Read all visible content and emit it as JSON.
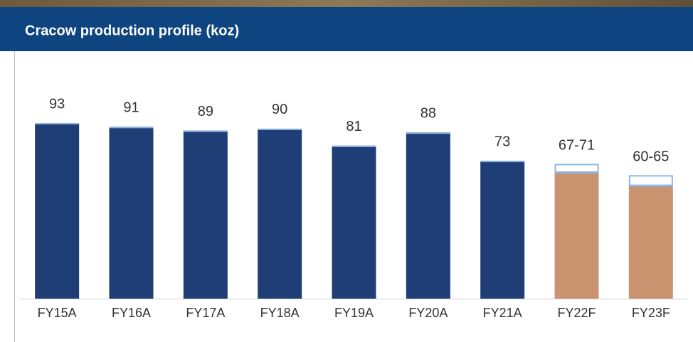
{
  "chart_data": {
    "type": "bar",
    "title": "Cracow production profile (koz)",
    "categories": [
      "FY15A",
      "FY16A",
      "FY17A",
      "FY18A",
      "FY19A",
      "FY20A",
      "FY21A",
      "FY22F",
      "FY23F"
    ],
    "series": [
      {
        "values": [
          93,
          91,
          89,
          90,
          81,
          88,
          73,
          67,
          60
        ],
        "value_labels": [
          "93",
          "91",
          "89",
          "90",
          "81",
          "88",
          "73",
          "67-71",
          "60-65"
        ],
        "colors": [
          "#1f3e76",
          "#1f3e76",
          "#1f3e76",
          "#1f3e76",
          "#1f3e76",
          "#1f3e76",
          "#1f3e76",
          "#c8936e",
          "#c8936e"
        ]
      },
      {
        "values": [
          null,
          null,
          null,
          null,
          null,
          null,
          null,
          4,
          5
        ],
        "color": "#8fb4e3",
        "outlined": true
      }
    ],
    "ylim": [
      0,
      100
    ]
  }
}
